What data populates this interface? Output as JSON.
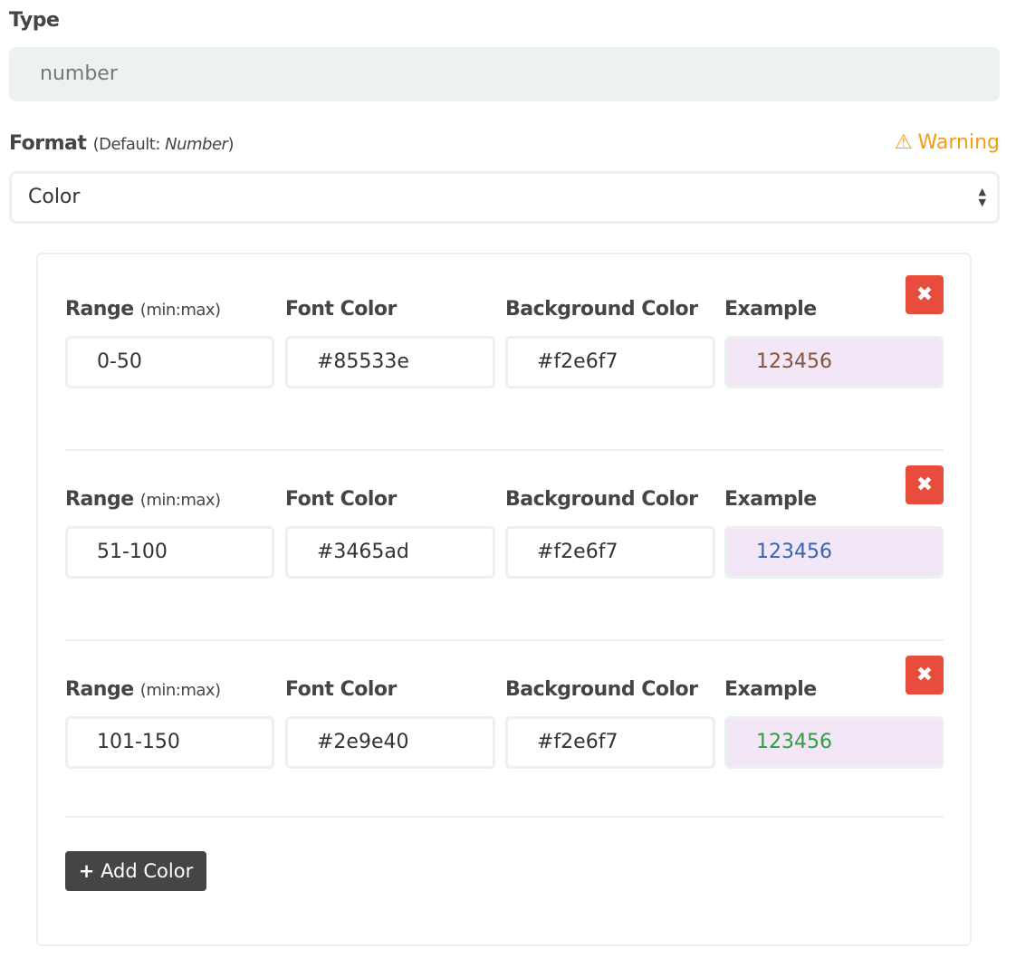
{
  "type": {
    "label": "Type",
    "value": "number"
  },
  "format": {
    "label": "Format",
    "default_prefix": "(Default: ",
    "default_value": "Number",
    "default_suffix": ")",
    "warning": "Warning",
    "selected": "Color"
  },
  "columns": {
    "range": "Range",
    "range_hint": "(min:max)",
    "font_color": "Font Color",
    "background_color": "Background Color",
    "example": "Example"
  },
  "rows": [
    {
      "range": "0-50",
      "font_color": "#85533e",
      "background_color": "#f2e6f7",
      "example": "123456"
    },
    {
      "range": "51-100",
      "font_color": "#3465ad",
      "background_color": "#f2e6f7",
      "example": "123456"
    },
    {
      "range": "101-150",
      "font_color": "#2e9e40",
      "background_color": "#f2e6f7",
      "example": "123456"
    }
  ],
  "add_button": {
    "icon": "+",
    "label": "Add Color"
  },
  "colors": {
    "warning": "#f39c12",
    "delete": "#e74c3c"
  }
}
